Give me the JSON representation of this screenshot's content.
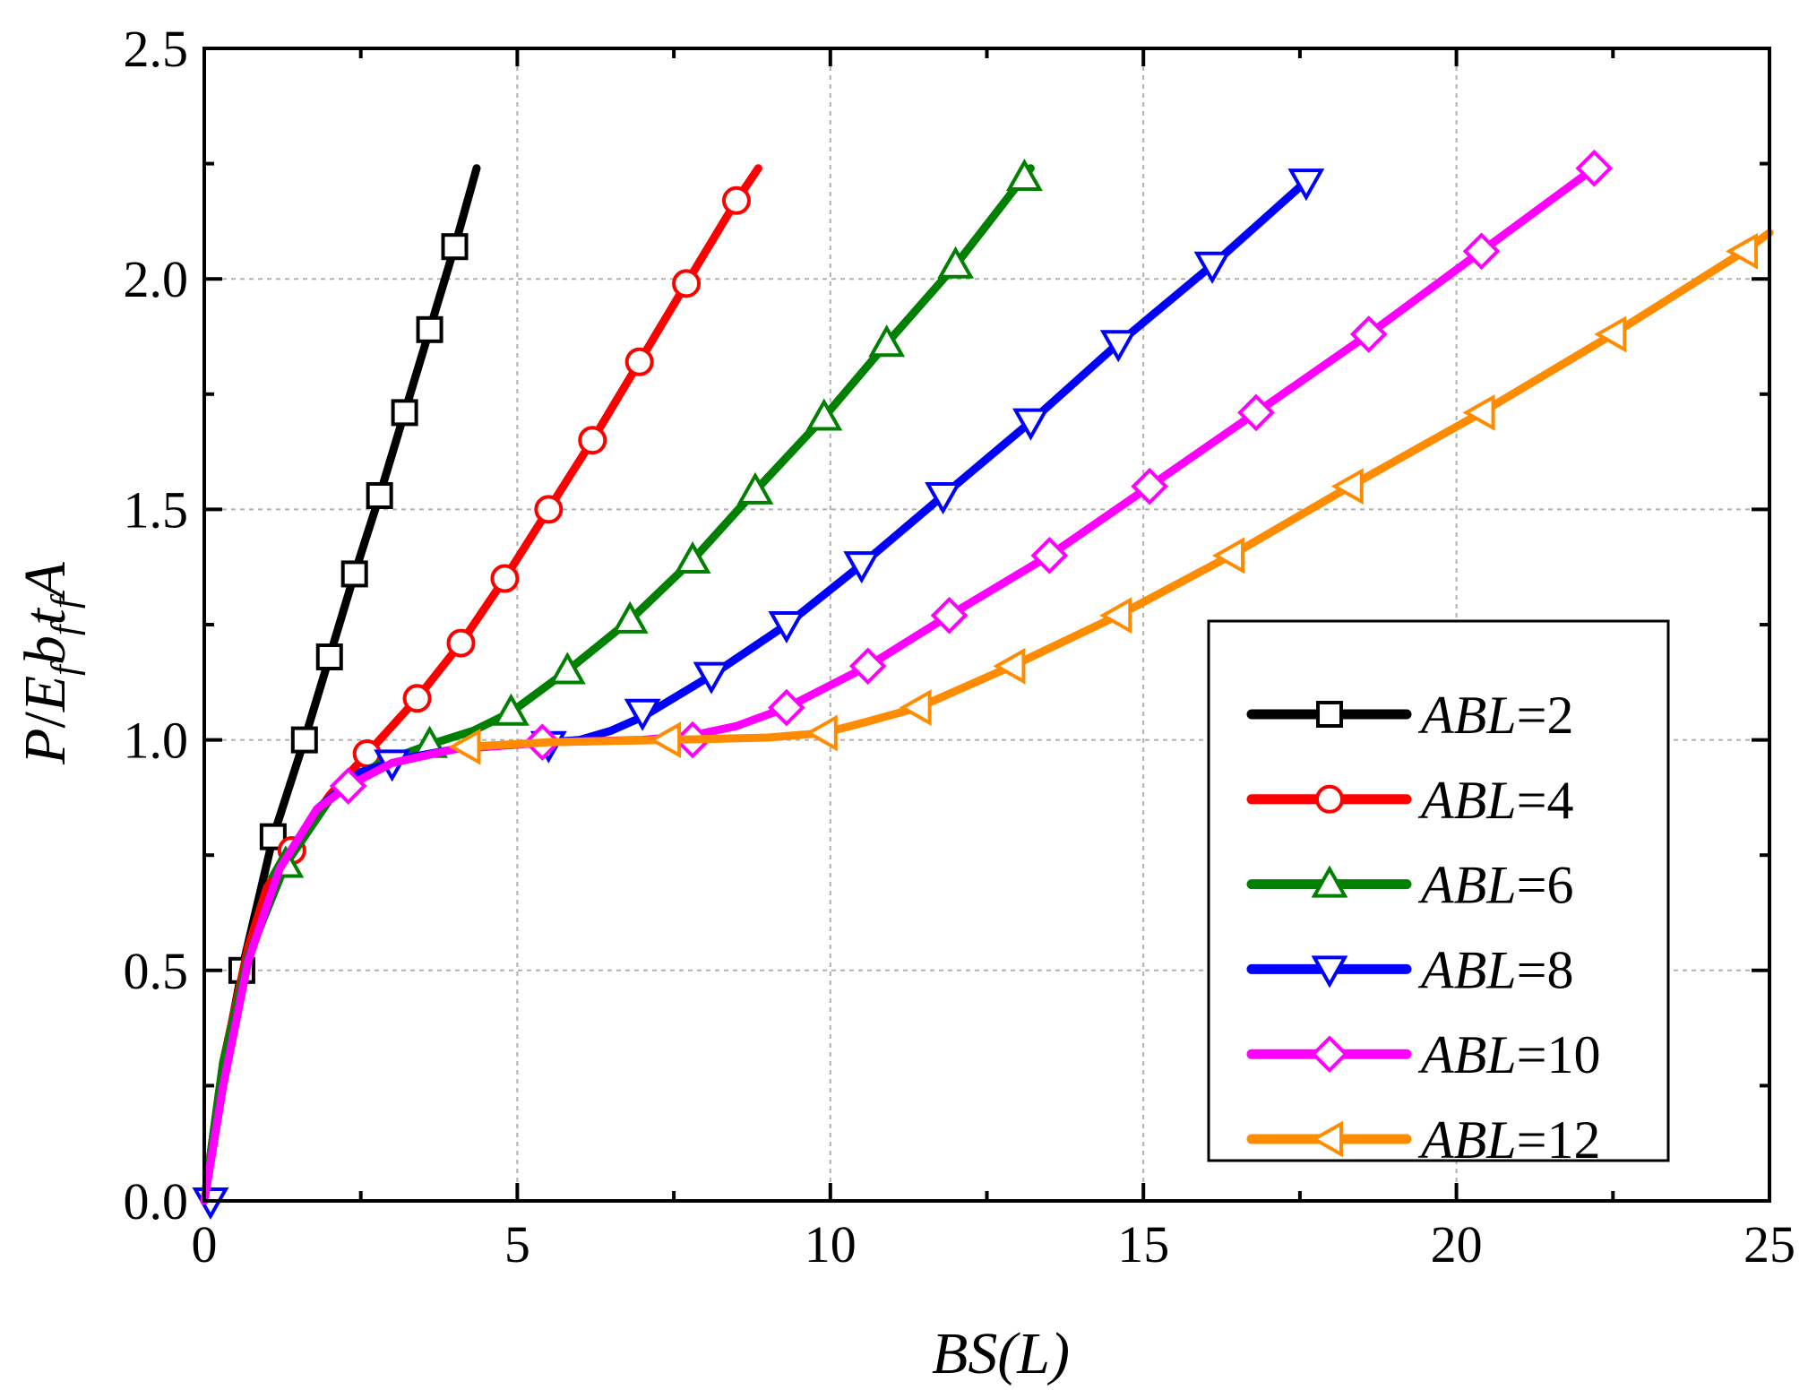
{
  "chart_data": {
    "type": "line",
    "xlabel": "BS(L)",
    "ylabel": "P/E_f b_f t_f A",
    "ylabel_parts": {
      "p": "P",
      "slash": "/",
      "e": "E",
      "b": "b",
      "t": "t",
      "a": "A",
      "sub": "f"
    },
    "xlim": [
      0,
      25
    ],
    "ylim": [
      0.0,
      2.5
    ],
    "x_ticks": [
      0,
      5,
      10,
      15,
      20,
      25
    ],
    "x_tick_labels": [
      "0",
      "5",
      "10",
      "15",
      "20",
      "25"
    ],
    "y_ticks": [
      0.0,
      0.5,
      1.0,
      1.5,
      2.0,
      2.5
    ],
    "y_tick_labels": [
      "0.0",
      "0.5",
      "1.0",
      "1.5",
      "2.0",
      "2.5"
    ],
    "grid": true,
    "legend_position": "bottom-right",
    "legend_prefix": "ABL",
    "series": [
      {
        "name": "ABL=2",
        "legend_value": "2",
        "color": "#000000",
        "marker": "square",
        "line": [
          [
            0,
            0
          ],
          [
            0.25,
            0.25
          ],
          [
            0.6,
            0.5
          ],
          [
            1.1,
            0.79
          ],
          [
            1.6,
            1.0
          ],
          [
            2.0,
            1.18
          ],
          [
            2.4,
            1.36
          ],
          [
            2.8,
            1.53
          ],
          [
            3.2,
            1.71
          ],
          [
            3.6,
            1.89
          ],
          [
            4.0,
            2.07
          ],
          [
            4.35,
            2.24
          ]
        ],
        "markers": [
          [
            0.6,
            0.5
          ],
          [
            1.1,
            0.79
          ],
          [
            1.6,
            1.0
          ],
          [
            2.0,
            1.18
          ],
          [
            2.4,
            1.36
          ],
          [
            2.8,
            1.53
          ],
          [
            3.2,
            1.71
          ],
          [
            3.6,
            1.89
          ],
          [
            4.0,
            2.07
          ]
        ]
      },
      {
        "name": "ABL=4",
        "legend_value": "4",
        "color": "#ff0000",
        "marker": "circle",
        "line": [
          [
            0,
            0
          ],
          [
            0.3,
            0.3
          ],
          [
            0.7,
            0.55
          ],
          [
            1.0,
            0.68
          ],
          [
            1.4,
            0.76
          ],
          [
            2.0,
            0.88
          ],
          [
            2.6,
            0.97
          ],
          [
            3.4,
            1.09
          ],
          [
            4.1,
            1.21
          ],
          [
            4.8,
            1.35
          ],
          [
            5.5,
            1.5
          ],
          [
            6.2,
            1.65
          ],
          [
            6.95,
            1.82
          ],
          [
            7.7,
            1.99
          ],
          [
            8.5,
            2.17
          ],
          [
            8.85,
            2.24
          ]
        ],
        "markers": [
          [
            1.4,
            0.76
          ],
          [
            2.6,
            0.97
          ],
          [
            3.4,
            1.09
          ],
          [
            4.1,
            1.21
          ],
          [
            4.8,
            1.35
          ],
          [
            5.5,
            1.5
          ],
          [
            6.2,
            1.65
          ],
          [
            6.95,
            1.82
          ],
          [
            7.7,
            1.99
          ],
          [
            8.5,
            2.17
          ]
        ]
      },
      {
        "name": "ABL=6",
        "legend_value": "6",
        "color": "#008000",
        "marker": "triangle-up",
        "line": [
          [
            0,
            0
          ],
          [
            0.3,
            0.3
          ],
          [
            0.7,
            0.53
          ],
          [
            1.3,
            0.73
          ],
          [
            2.0,
            0.87
          ],
          [
            2.8,
            0.95
          ],
          [
            3.6,
            0.99
          ],
          [
            4.3,
            1.02
          ],
          [
            4.9,
            1.06
          ],
          [
            5.8,
            1.15
          ],
          [
            6.8,
            1.26
          ],
          [
            7.8,
            1.39
          ],
          [
            8.8,
            1.54
          ],
          [
            9.9,
            1.7
          ],
          [
            10.9,
            1.86
          ],
          [
            12.0,
            2.03
          ],
          [
            13.2,
            2.24
          ]
        ],
        "markers": [
          [
            1.3,
            0.73
          ],
          [
            3.6,
            0.99
          ],
          [
            4.9,
            1.06
          ],
          [
            5.8,
            1.15
          ],
          [
            6.8,
            1.26
          ],
          [
            7.8,
            1.39
          ],
          [
            8.8,
            1.54
          ],
          [
            9.9,
            1.7
          ],
          [
            10.9,
            1.86
          ],
          [
            12.0,
            2.03
          ],
          [
            13.1,
            2.22
          ]
        ]
      },
      {
        "name": "ABL=8",
        "legend_value": "8",
        "color": "#0000ff",
        "marker": "triangle-down",
        "line": [
          [
            0,
            0
          ],
          [
            0.3,
            0.25
          ],
          [
            0.7,
            0.52
          ],
          [
            1.2,
            0.72
          ],
          [
            1.8,
            0.85
          ],
          [
            2.5,
            0.93
          ],
          [
            3.2,
            0.96
          ],
          [
            4.0,
            0.98
          ],
          [
            5.0,
            0.99
          ],
          [
            6.0,
            1.0
          ],
          [
            6.5,
            1.02
          ],
          [
            7.0,
            1.05
          ],
          [
            8.1,
            1.14
          ],
          [
            9.3,
            1.25
          ],
          [
            10.5,
            1.38
          ],
          [
            11.8,
            1.53
          ],
          [
            13.2,
            1.69
          ],
          [
            14.6,
            1.86
          ],
          [
            16.1,
            2.03
          ],
          [
            17.75,
            2.23
          ]
        ],
        "markers": [
          [
            0.1,
            0.0
          ],
          [
            3.0,
            0.95
          ],
          [
            5.5,
            0.99
          ],
          [
            7.0,
            1.06
          ],
          [
            8.1,
            1.14
          ],
          [
            9.3,
            1.25
          ],
          [
            10.5,
            1.38
          ],
          [
            11.8,
            1.53
          ],
          [
            13.2,
            1.69
          ],
          [
            14.6,
            1.86
          ],
          [
            16.1,
            2.03
          ],
          [
            17.6,
            2.21
          ]
        ]
      },
      {
        "name": "ABL=10",
        "legend_value": "10",
        "color": "#ff00ff",
        "marker": "diamond",
        "line": [
          [
            0,
            0
          ],
          [
            0.3,
            0.25
          ],
          [
            0.7,
            0.52
          ],
          [
            1.2,
            0.72
          ],
          [
            1.8,
            0.85
          ],
          [
            2.3,
            0.9
          ],
          [
            3.0,
            0.95
          ],
          [
            4.0,
            0.98
          ],
          [
            5.5,
            0.995
          ],
          [
            7.0,
            1.0
          ],
          [
            7.8,
            1.01
          ],
          [
            8.5,
            1.03
          ],
          [
            9.3,
            1.07
          ],
          [
            10.6,
            1.16
          ],
          [
            11.9,
            1.27
          ],
          [
            13.5,
            1.4
          ],
          [
            15.1,
            1.55
          ],
          [
            16.8,
            1.71
          ],
          [
            18.6,
            1.88
          ],
          [
            20.4,
            2.06
          ],
          [
            22.2,
            2.24
          ]
        ],
        "markers": [
          [
            2.3,
            0.9
          ],
          [
            5.4,
            0.995
          ],
          [
            7.8,
            1.0
          ],
          [
            9.3,
            1.07
          ],
          [
            10.6,
            1.16
          ],
          [
            11.9,
            1.27
          ],
          [
            13.5,
            1.4
          ],
          [
            15.1,
            1.55
          ],
          [
            16.8,
            1.71
          ],
          [
            18.6,
            1.88
          ],
          [
            20.4,
            2.06
          ],
          [
            22.2,
            2.24
          ]
        ]
      },
      {
        "name": "ABL=12",
        "legend_value": "12",
        "color": "#ff8c00",
        "marker": "triangle-left",
        "line": [
          [
            4.2,
            0.985
          ],
          [
            5.5,
            0.995
          ],
          [
            7.4,
            1.0
          ],
          [
            9.0,
            1.005
          ],
          [
            9.9,
            1.015
          ],
          [
            10.6,
            1.04
          ],
          [
            11.4,
            1.07
          ],
          [
            12.9,
            1.16
          ],
          [
            14.6,
            1.27
          ],
          [
            16.4,
            1.4
          ],
          [
            18.3,
            1.55
          ],
          [
            20.4,
            1.71
          ],
          [
            22.5,
            1.88
          ],
          [
            24.6,
            2.06
          ],
          [
            25.0,
            2.1
          ]
        ],
        "markers": [
          [
            4.2,
            0.985
          ],
          [
            7.4,
            1.0
          ],
          [
            9.9,
            1.015
          ],
          [
            11.4,
            1.07
          ],
          [
            12.9,
            1.16
          ],
          [
            14.6,
            1.27
          ],
          [
            16.4,
            1.4
          ],
          [
            18.3,
            1.55
          ],
          [
            20.4,
            1.71
          ],
          [
            22.5,
            1.88
          ],
          [
            24.6,
            2.06
          ]
        ]
      }
    ]
  }
}
